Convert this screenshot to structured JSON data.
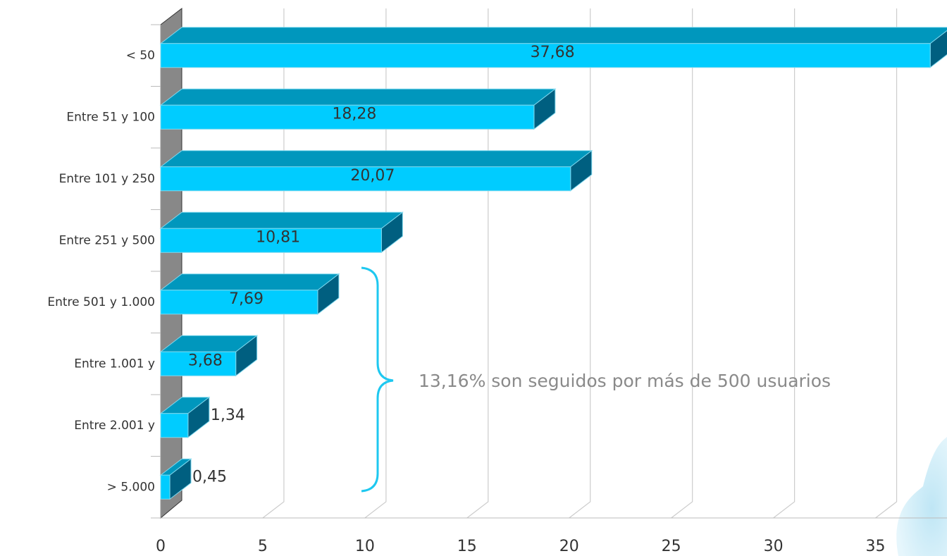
{
  "chart_data": {
    "type": "bar3d-horizontal",
    "categories": [
      "< 50",
      "Entre 51 y 100",
      "Entre 101 y 250",
      "Entre 251 y 500",
      "Entre 501 y 1.000",
      "Entre 1.001 y",
      "Entre 2.001 y",
      "> 5.000"
    ],
    "values": [
      37.68,
      18.28,
      20.07,
      10.81,
      7.69,
      3.68,
      1.34,
      0.45
    ],
    "value_labels": [
      "37,68",
      "18,28",
      "20,07",
      "10,81",
      "7,69",
      "3,68",
      "1,34",
      "0,45"
    ],
    "color": "#00ccff",
    "xlim": [
      0,
      38.5
    ],
    "xticks": [
      0,
      5,
      10,
      15,
      20,
      25,
      30,
      35
    ],
    "grid": true,
    "annotation": "13,16% son seguidos por más de 500 usuarios"
  }
}
